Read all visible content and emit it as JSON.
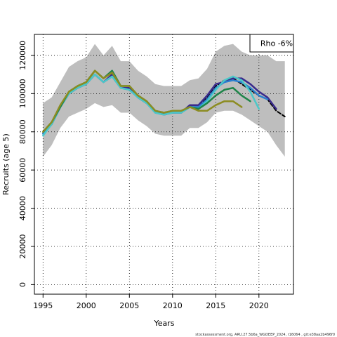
{
  "chart_data": {
    "type": "line",
    "xlabel": "Years",
    "ylabel": "Recruits (age 5)",
    "xlim": [
      1994,
      2024
    ],
    "ylim": [
      -5000,
      131000
    ],
    "x_ticks": [
      1995,
      2000,
      2005,
      2010,
      2015,
      2020
    ],
    "y_ticks": [
      0,
      20000,
      40000,
      60000,
      80000,
      100000,
      120000
    ],
    "grid": true,
    "legend_text": "Rho -6%",
    "legend_position": "top-right",
    "footer": "stockassessment.org, ARU.27.5b6a_WGDEEP_2024, r16064 , git:e38aa2b496f0",
    "band": {
      "color": "#bebebe",
      "x": [
        1995,
        1996,
        1997,
        1998,
        1999,
        2000,
        2001,
        2002,
        2003,
        2004,
        2005,
        2006,
        2007,
        2008,
        2009,
        2010,
        2011,
        2012,
        2013,
        2014,
        2015,
        2016,
        2017,
        2018,
        2019,
        2020,
        2021,
        2022,
        2023
      ],
      "upper": [
        95000,
        98000,
        106000,
        114000,
        117000,
        119000,
        126000,
        120000,
        125000,
        117000,
        117000,
        112000,
        109000,
        105000,
        104000,
        104000,
        104000,
        107000,
        108000,
        113000,
        122000,
        125000,
        126000,
        122000,
        120000,
        120000,
        120000,
        117000,
        117000
      ],
      "lower": [
        67000,
        73000,
        82000,
        88000,
        90000,
        92000,
        95000,
        93000,
        94000,
        90000,
        90000,
        86000,
        83000,
        79000,
        78000,
        78000,
        78000,
        82000,
        82000,
        85000,
        90000,
        91000,
        91000,
        89000,
        86000,
        83000,
        80000,
        73000,
        67000
      ]
    },
    "series": [
      {
        "color": "#000000",
        "dashed": true,
        "width": 2,
        "x": [
          1995,
          1996,
          1997,
          1998,
          1999,
          2000,
          2001,
          2002,
          2003,
          2004,
          2005,
          2006,
          2007,
          2008,
          2009,
          2010,
          2011,
          2012,
          2013,
          2014,
          2015,
          2016,
          2017,
          2018,
          2019,
          2020,
          2021,
          2022,
          2023
        ],
        "values": [
          79000,
          84000,
          93000,
          100000,
          103000,
          105000,
          110000,
          106000,
          109000,
          103000,
          102000,
          98000,
          95000,
          90000,
          89000,
          90000,
          90000,
          93000,
          93000,
          98000,
          104000,
          107000,
          108000,
          105000,
          102000,
          99000,
          97000,
          91000,
          88000
        ]
      },
      {
        "color": "#3a2a8c",
        "dashed": false,
        "width": 2.5,
        "x": [
          1995,
          1996,
          1997,
          1998,
          1999,
          2000,
          2001,
          2002,
          2003,
          2004,
          2005,
          2006,
          2007,
          2008,
          2009,
          2010,
          2011,
          2012,
          2013,
          2014,
          2015,
          2016,
          2017,
          2018,
          2019,
          2020,
          2021,
          2022
        ],
        "values": [
          79000,
          84000,
          93000,
          100000,
          103000,
          105000,
          110000,
          106000,
          110000,
          103000,
          103000,
          98000,
          95000,
          91000,
          89000,
          90000,
          90000,
          94000,
          94000,
          99000,
          105000,
          106000,
          108000,
          108000,
          105000,
          101000,
          98000,
          92000
        ]
      },
      {
        "color": "#2a7fcf",
        "dashed": false,
        "width": 2.5,
        "x": [
          1995,
          1996,
          1997,
          1998,
          1999,
          2000,
          2001,
          2002,
          2003,
          2004,
          2005,
          2006,
          2007,
          2008,
          2009,
          2010,
          2011,
          2012,
          2013,
          2014,
          2015,
          2016,
          2017,
          2018,
          2019,
          2020,
          2021
        ],
        "values": [
          79000,
          84000,
          93000,
          100000,
          103000,
          105000,
          110000,
          106000,
          109000,
          103000,
          102000,
          98000,
          95000,
          90000,
          89000,
          90000,
          90000,
          93000,
          93000,
          97000,
          103000,
          106000,
          107000,
          106000,
          103000,
          99000,
          97000
        ]
      },
      {
        "color": "#4cc8c8",
        "dashed": false,
        "width": 2.5,
        "x": [
          1995,
          1996,
          1997,
          1998,
          1999,
          2000,
          2001,
          2002,
          2003,
          2004,
          2005,
          2006,
          2007,
          2008,
          2009,
          2010,
          2011,
          2012,
          2013,
          2014,
          2015,
          2016,
          2017,
          2018,
          2019,
          2020
        ],
        "values": [
          78000,
          84000,
          93000,
          100000,
          103000,
          105000,
          110000,
          106000,
          109000,
          103000,
          102000,
          98000,
          95000,
          90000,
          89000,
          90000,
          90000,
          93000,
          92000,
          96000,
          102000,
          107000,
          109000,
          107000,
          101000,
          92000
        ]
      },
      {
        "color": "#1e8449",
        "dashed": false,
        "width": 2.5,
        "x": [
          1995,
          1996,
          1997,
          1998,
          1999,
          2000,
          2001,
          2002,
          2003,
          2004,
          2005,
          2006,
          2007,
          2008,
          2009,
          2010,
          2011,
          2012,
          2013,
          2014,
          2015,
          2016,
          2017,
          2018,
          2019
        ],
        "values": [
          80000,
          85000,
          93000,
          101000,
          104000,
          106000,
          112000,
          108000,
          112000,
          104000,
          104000,
          99000,
          96000,
          91000,
          90000,
          91000,
          91000,
          93000,
          92000,
          95000,
          99000,
          102000,
          103000,
          99000,
          96000
        ]
      },
      {
        "color": "#8c8c22",
        "dashed": false,
        "width": 2.5,
        "x": [
          1995,
          1996,
          1997,
          1998,
          1999,
          2000,
          2001,
          2002,
          2003,
          2004,
          2005,
          2006,
          2007,
          2008,
          2009,
          2010,
          2011,
          2012,
          2013,
          2014,
          2015,
          2016,
          2017,
          2018
        ],
        "values": [
          80000,
          85000,
          94000,
          101000,
          104000,
          106000,
          112000,
          108000,
          111000,
          104000,
          104000,
          99000,
          96000,
          91000,
          90000,
          91000,
          91000,
          93000,
          91000,
          91000,
          94000,
          96000,
          96000,
          93000
        ]
      }
    ]
  }
}
